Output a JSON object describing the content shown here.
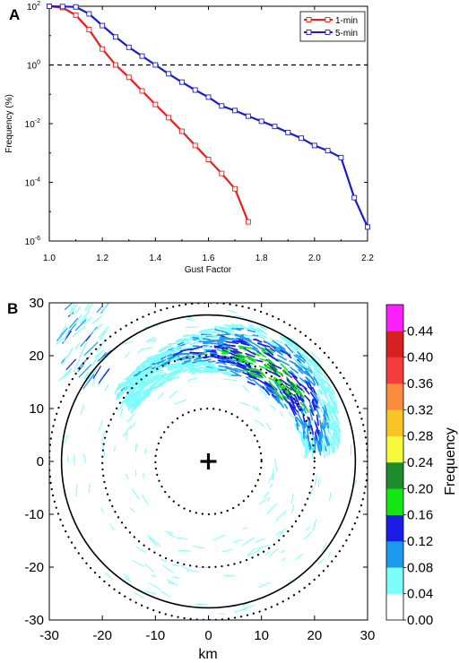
{
  "chart_data": [
    {
      "panel": "A",
      "type": "line",
      "xlabel": "Gust Factor",
      "ylabel": "Frequency (%)",
      "xlim": [
        1.0,
        2.2
      ],
      "ylim": [
        1e-06,
        100
      ],
      "yscale": "log",
      "xticks": [
        "1.0",
        "1.2",
        "1.4",
        "1.6",
        "1.8",
        "2.0",
        "2.2"
      ],
      "yticks": [
        {
          "base": "10",
          "exp": "2"
        },
        {
          "base": "10",
          "exp": "0"
        },
        {
          "base": "10",
          "exp": "-2"
        },
        {
          "base": "10",
          "exp": "-4"
        },
        {
          "base": "10",
          "exp": "-6"
        }
      ],
      "reference_line": {
        "y": 1,
        "style": "dashed",
        "color": "#000000"
      },
      "legend_position": "top-right",
      "series": [
        {
          "name": "1-min",
          "color": "#ee1c1c",
          "marker": "square",
          "x": [
            1.0,
            1.05,
            1.1,
            1.15,
            1.2,
            1.25,
            1.3,
            1.35,
            1.4,
            1.45,
            1.5,
            1.55,
            1.6,
            1.65,
            1.7,
            1.75
          ],
          "y": [
            100,
            90,
            50,
            16,
            3.5,
            1.0,
            0.38,
            0.13,
            0.045,
            0.016,
            0.0055,
            0.0018,
            0.0006,
            0.0002,
            6e-05,
            4.5e-06
          ]
        },
        {
          "name": "5-min",
          "color": "#1c1cc8",
          "marker": "square",
          "x": [
            1.0,
            1.05,
            1.1,
            1.15,
            1.2,
            1.25,
            1.3,
            1.35,
            1.4,
            1.45,
            1.5,
            1.55,
            1.6,
            1.65,
            1.7,
            1.75,
            1.8,
            1.85,
            1.9,
            1.95,
            2.0,
            2.05,
            2.1,
            2.15,
            2.2
          ],
          "y": [
            100,
            98,
            95,
            55,
            22,
            9,
            4,
            2.0,
            1.0,
            0.5,
            0.26,
            0.14,
            0.08,
            0.04,
            0.028,
            0.018,
            0.012,
            0.008,
            0.005,
            0.0032,
            0.0018,
            0.0012,
            0.0007,
            3e-05,
            3e-06
          ]
        }
      ]
    },
    {
      "panel": "B",
      "type": "heatmap",
      "xlabel": "km",
      "ylabel": "",
      "xlim": [
        -30,
        30
      ],
      "ylim": [
        -30,
        30
      ],
      "xticks": [
        "-30",
        "-20",
        "-10",
        "0",
        "10",
        "20",
        "30"
      ],
      "yticks": [
        "30",
        "20",
        "10",
        "0",
        "-10",
        "-20",
        "-30"
      ],
      "colorbar": {
        "label": "Frequency",
        "ticks": [
          "0.44",
          "0.40",
          "0.36",
          "0.32",
          "0.28",
          "0.24",
          "0.20",
          "0.16",
          "0.12",
          "0.08",
          "0.04",
          "0.00"
        ],
        "colors": [
          "#ffffff",
          "#7ffdfd",
          "#1b9bf0",
          "#1c1ce6",
          "#14e614",
          "#1c8c2c",
          "#f8f83c",
          "#f8c426",
          "#fa8a3c",
          "#f43c3c",
          "#d42020",
          "#fd20fd"
        ]
      },
      "center_marker": {
        "x": 0,
        "y": 0,
        "symbol": "+"
      },
      "solid_circle_radius": 27.7,
      "dotted_circle_radii": [
        10,
        20,
        30
      ],
      "frequency_band": {
        "center_x": 0,
        "center_y": 0,
        "radius": 21,
        "from_angle_deg": 5,
        "to_angle_deg": 145,
        "peak_value": 0.24,
        "peak_angle_deg": 55
      }
    }
  ],
  "labels": {
    "panel_a": "A",
    "panel_b": "B"
  }
}
